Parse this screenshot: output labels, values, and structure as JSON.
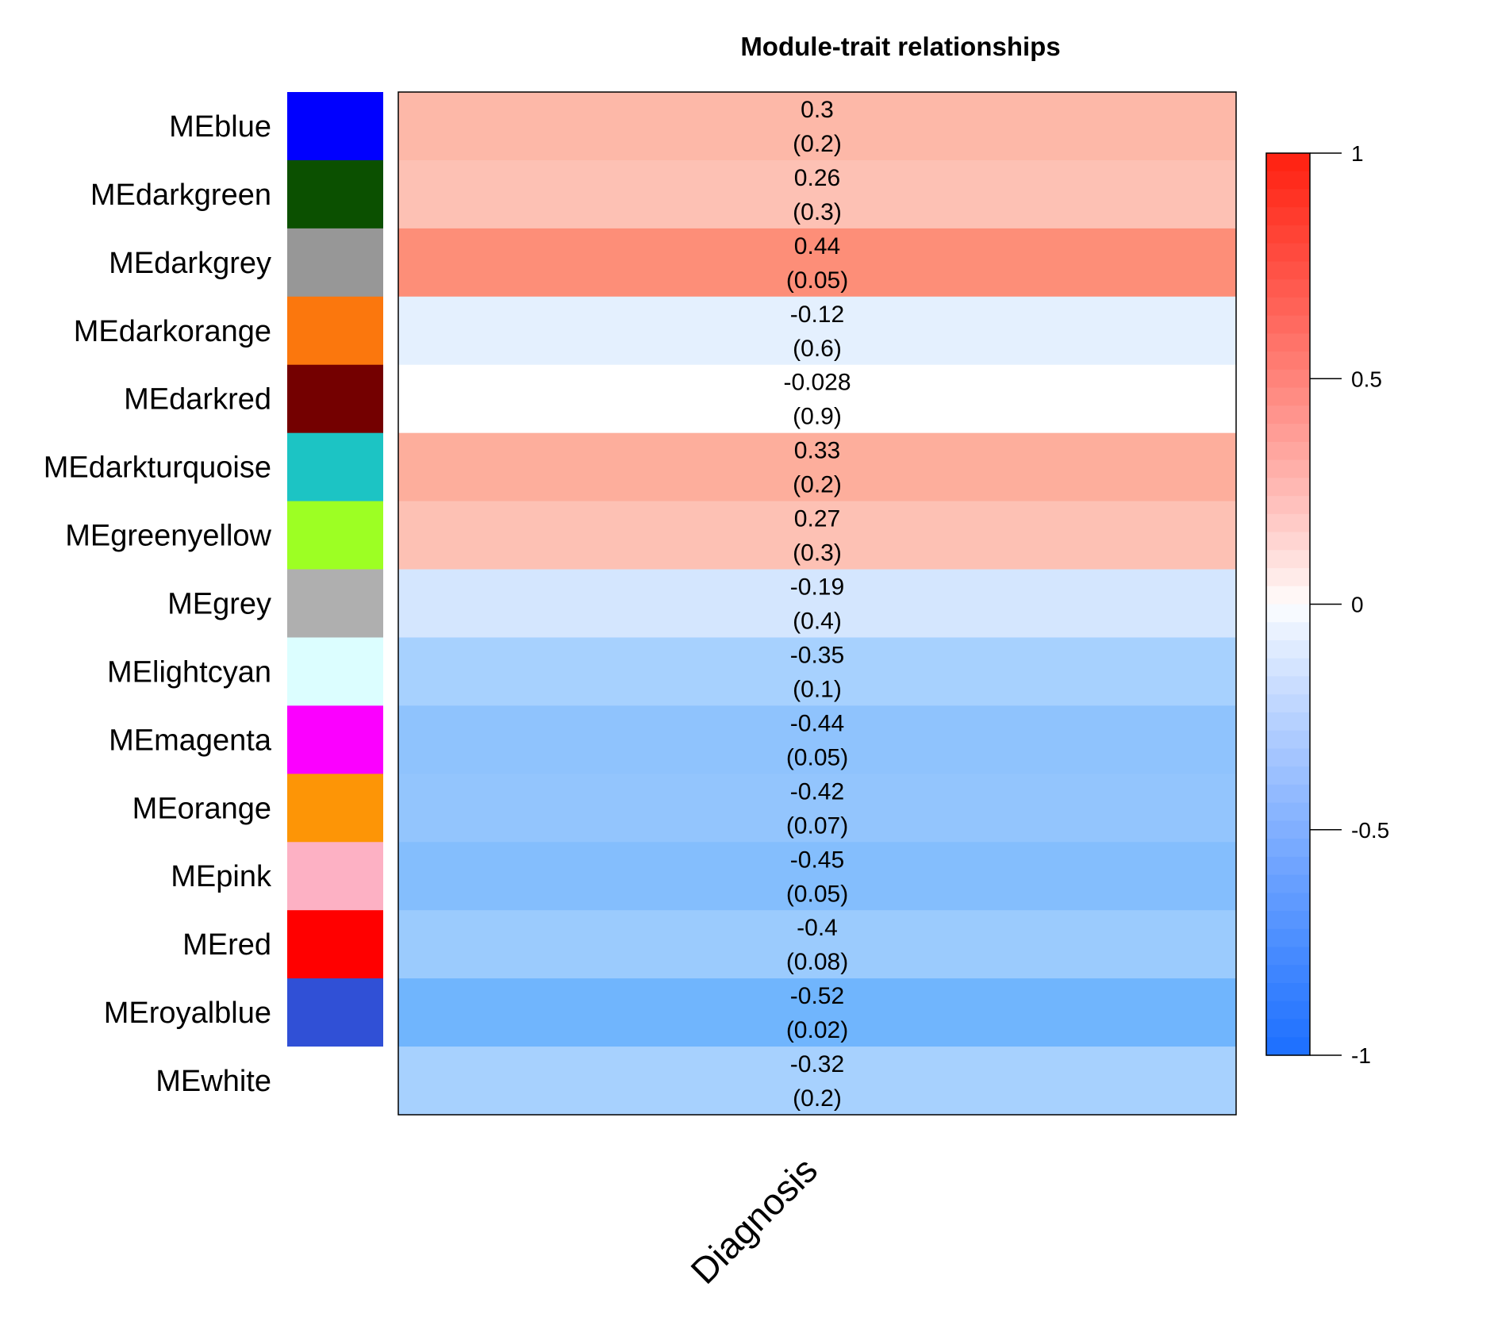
{
  "chart_data": {
    "type": "heatmap",
    "title": "Module-trait relationships",
    "x_categories": [
      "Diagnosis"
    ],
    "rows": [
      {
        "module": "MEblue",
        "color": "#0000FF",
        "value": 0.3,
        "value_label": "0.3",
        "p_label": "(0.2)",
        "cell_color": "#FDB8A8"
      },
      {
        "module": "MEdarkgreen",
        "color": "#0B5000",
        "value": 0.26,
        "value_label": "0.26",
        "p_label": "(0.3)",
        "cell_color": "#FDC1B4"
      },
      {
        "module": "MEdarkgrey",
        "color": "#979797",
        "value": 0.44,
        "value_label": "0.44",
        "p_label": "(0.05)",
        "cell_color": "#FD8E78"
      },
      {
        "module": "MEdarkorange",
        "color": "#FB770D",
        "value": -0.12,
        "value_label": "-0.12",
        "p_label": "(0.6)",
        "cell_color": "#E4F0FE"
      },
      {
        "module": "MEdarkred",
        "color": "#740000",
        "value": -0.028,
        "value_label": "-0.028",
        "p_label": "(0.9)",
        "cell_color": "#FFFFFF"
      },
      {
        "module": "MEdarkturquoise",
        "color": "#1CC4C4",
        "value": 0.33,
        "value_label": "0.33",
        "p_label": "(0.2)",
        "cell_color": "#FDAE9C"
      },
      {
        "module": "MEgreenyellow",
        "color": "#9DFF23",
        "value": 0.27,
        "value_label": "0.27",
        "p_label": "(0.3)",
        "cell_color": "#FDC1B4"
      },
      {
        "module": "MEgrey",
        "color": "#AFAFAF",
        "value": -0.19,
        "value_label": "-0.19",
        "p_label": "(0.4)",
        "cell_color": "#D4E6FE"
      },
      {
        "module": "MElightcyan",
        "color": "#DCFEFF",
        "value": -0.35,
        "value_label": "-0.35",
        "p_label": "(0.1)",
        "cell_color": "#A7D1FE"
      },
      {
        "module": "MEmagenta",
        "color": "#FB00FF",
        "value": -0.44,
        "value_label": "-0.44",
        "p_label": "(0.05)",
        "cell_color": "#8FC3FD"
      },
      {
        "module": "MEorange",
        "color": "#FD9506",
        "value": -0.42,
        "value_label": "-0.42",
        "p_label": "(0.07)",
        "cell_color": "#93C5FD"
      },
      {
        "module": "MEpink",
        "color": "#FDB1C4",
        "value": -0.45,
        "value_label": "-0.45",
        "p_label": "(0.05)",
        "cell_color": "#84BEFD"
      },
      {
        "module": "MEred",
        "color": "#FF0000",
        "value": -0.4,
        "value_label": "-0.4",
        "p_label": "(0.08)",
        "cell_color": "#9BCBFD"
      },
      {
        "module": "MEroyalblue",
        "color": "#3050D6",
        "value": -0.52,
        "value_label": "-0.52",
        "p_label": "(0.02)",
        "cell_color": "#70B5FD"
      },
      {
        "module": "MEwhite",
        "color": "#FFFFFF",
        "value": -0.32,
        "value_label": "-0.32",
        "p_label": "(0.2)",
        "cell_color": "#A7D1FE"
      }
    ],
    "colorbar": {
      "range": [
        -1,
        1
      ],
      "ticks": [
        1,
        0.5,
        0,
        -0.5,
        -1
      ],
      "tick_labels": [
        "1",
        "0.5",
        "0",
        "-0.5",
        "-1"
      ],
      "low_color": "#1B6FFF",
      "mid_color": "#FFFFFF",
      "high_color": "#FF2010"
    }
  }
}
